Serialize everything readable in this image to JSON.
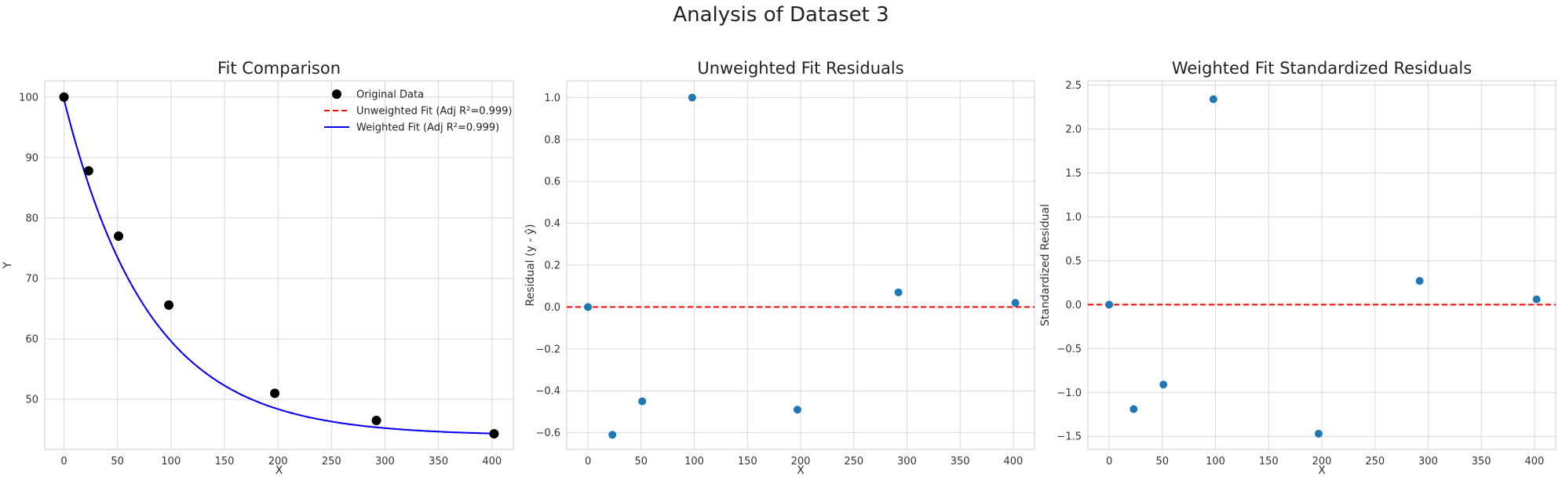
{
  "suptitle": "Analysis of Dataset 3",
  "colors": {
    "data_points": "#000000",
    "unweighted_fit": "#ff0000",
    "weighted_fit": "#0000ff",
    "residual_points": "#1f77b4",
    "zero_line": "#ff0000",
    "grid": "#d8d8d8",
    "spine": "#cccccc"
  },
  "chart_data": [
    {
      "type": "line",
      "title": "Fit Comparison",
      "xlabel": "X",
      "ylabel": "Y",
      "xlim": [
        -18,
        420
      ],
      "ylim": [
        41.7,
        102.7
      ],
      "xticks": [
        0,
        50,
        100,
        150,
        200,
        250,
        300,
        350,
        400
      ],
      "yticks": [
        50,
        60,
        70,
        80,
        90,
        100
      ],
      "grid": true,
      "legend_position": "top-right",
      "series": [
        {
          "name": "Original Data",
          "kind": "scatter",
          "color": "#000000",
          "x": [
            0,
            23,
            51,
            98,
            197,
            292,
            402
          ],
          "y": [
            100,
            87.8,
            77.0,
            65.6,
            51.0,
            46.5,
            44.3
          ]
        },
        {
          "name": "Unweighted Fit (Adj R²=0.999)",
          "kind": "line",
          "style": "dashed",
          "color": "#ff0000",
          "model": {
            "a": 55.6,
            "k": 0.0127,
            "c": 44.0
          }
        },
        {
          "name": "Weighted Fit (Adj R²=0.999)",
          "kind": "line",
          "style": "solid",
          "color": "#0000ff",
          "model": {
            "a": 55.6,
            "k": 0.0127,
            "c": 44.0
          }
        }
      ]
    },
    {
      "type": "scatter",
      "title": "Unweighted Fit Residuals",
      "xlabel": "X",
      "ylabel": "Residual (y - ŷ)",
      "xlim": [
        -20,
        420
      ],
      "ylim": [
        -0.68,
        1.08
      ],
      "xticks": [
        0,
        50,
        100,
        150,
        200,
        250,
        300,
        350,
        400
      ],
      "yticks": [
        -0.6,
        -0.4,
        -0.2,
        0.0,
        0.2,
        0.4,
        0.6,
        0.8,
        1.0
      ],
      "ytick_labels": [
        "−0.6",
        "−0.4",
        "−0.2",
        "0.0",
        "0.2",
        "0.4",
        "0.6",
        "0.8",
        "1.0"
      ],
      "grid": true,
      "zero_line": 0,
      "points": {
        "x": [
          0,
          23,
          51,
          98,
          197,
          292,
          402
        ],
        "y": [
          0.0,
          -0.61,
          -0.45,
          1.0,
          -0.49,
          0.07,
          0.02
        ]
      }
    },
    {
      "type": "scatter",
      "title": "Weighted Fit Standardized Residuals",
      "xlabel": "X",
      "ylabel": "Standardized Residual",
      "xlim": [
        -20,
        420
      ],
      "ylim": [
        -1.65,
        2.55
      ],
      "xticks": [
        0,
        50,
        100,
        150,
        200,
        250,
        300,
        350,
        400
      ],
      "yticks": [
        -1.5,
        -1.0,
        -0.5,
        0.0,
        0.5,
        1.0,
        1.5,
        2.0,
        2.5
      ],
      "ytick_labels": [
        "−1.5",
        "−1.0",
        "−0.5",
        "0.0",
        "0.5",
        "1.0",
        "1.5",
        "2.0",
        "2.5"
      ],
      "grid": true,
      "zero_line": 0,
      "points": {
        "x": [
          0,
          23,
          51,
          98,
          197,
          292,
          402
        ],
        "y": [
          0.0,
          -1.19,
          -0.91,
          2.34,
          -1.47,
          0.27,
          0.06
        ]
      }
    }
  ]
}
